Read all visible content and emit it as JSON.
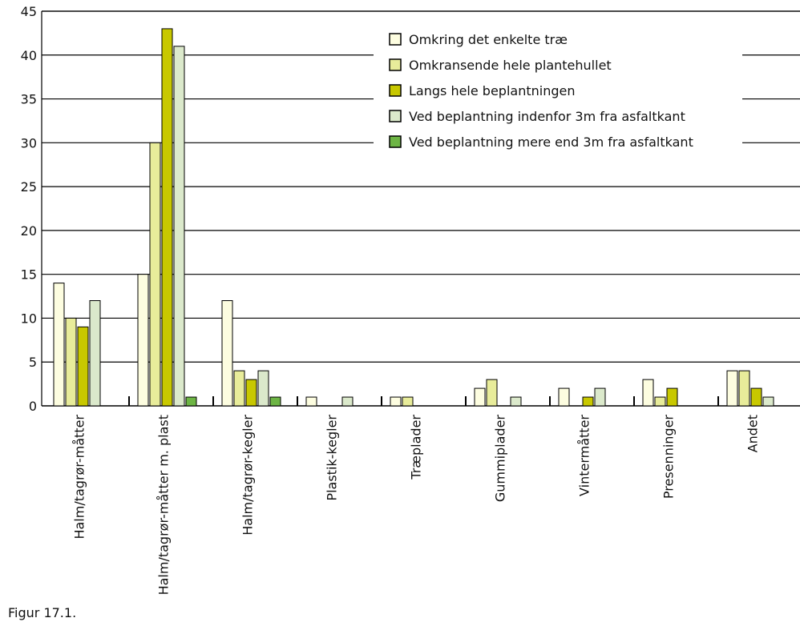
{
  "caption": "Figur 17.1.",
  "chart_data": {
    "type": "bar",
    "categories": [
      "Halm/tagrør-måtter",
      "Halm/tagrør-måtter m. plast",
      "Halm/tagrør-kegler",
      "Plastik-kegler",
      "Træplader",
      "Gummiplader",
      "Vintermåtter",
      "Presenninger",
      "Andet"
    ],
    "series": [
      {
        "name": "Omkring det enkelte træ",
        "color": "#fdfde0",
        "values": [
          14,
          15,
          12,
          1,
          1,
          2,
          2,
          3,
          4
        ]
      },
      {
        "name": "Omkransende hele plantehullet",
        "color": "#e8ec9a",
        "values": [
          10,
          30,
          4,
          0,
          1,
          3,
          0,
          1,
          4
        ]
      },
      {
        "name": "Langs hele beplantningen",
        "color": "#c8c800",
        "values": [
          9,
          43,
          3,
          0,
          0,
          0,
          1,
          2,
          2
        ]
      },
      {
        "name": "Ved beplantning indenfor 3m fra asfaltkant",
        "color": "#dbe9cb",
        "values": [
          12,
          41,
          4,
          1,
          0,
          1,
          2,
          0,
          1
        ]
      },
      {
        "name": "Ved beplantning mere end 3m fra asfaltkant",
        "color": "#6db544",
        "values": [
          0,
          1,
          1,
          0,
          0,
          0,
          0,
          0,
          0
        ]
      }
    ],
    "yticks": [
      0,
      5,
      10,
      15,
      20,
      25,
      30,
      35,
      40,
      45
    ],
    "ylim": [
      0,
      45
    ],
    "grid": true,
    "legend_position": "top-right",
    "title": "",
    "xlabel": "",
    "ylabel": ""
  }
}
